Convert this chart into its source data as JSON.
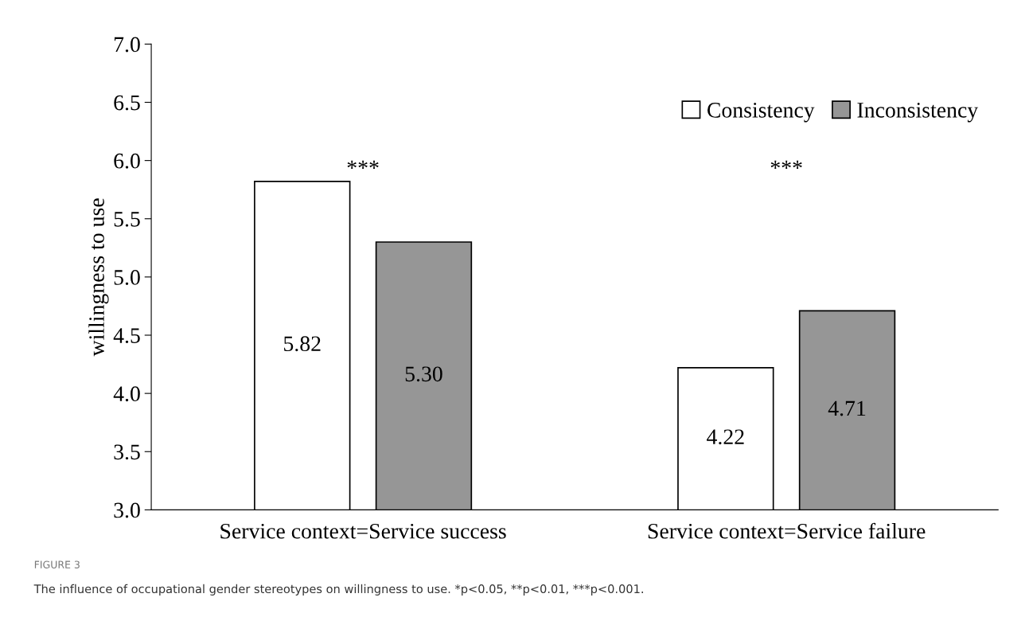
{
  "chart_data": {
    "type": "bar",
    "ylabel": "willingness to use",
    "categories": [
      "Service context=Service success",
      "Service context=Service failure"
    ],
    "series": [
      {
        "name": "Consistency",
        "color": "#ffffff",
        "values": [
          5.82,
          4.22
        ],
        "value_labels": [
          "5.82",
          "4.22"
        ]
      },
      {
        "name": "Inconsistency",
        "color": "#969696",
        "values": [
          5.3,
          4.71
        ],
        "value_labels": [
          "5.30",
          "4.71"
        ]
      }
    ],
    "ylim": [
      3,
      7
    ],
    "yticks": [
      {
        "value": 3,
        "label": "3.0"
      },
      {
        "value": 3.5,
        "label": "3.5"
      },
      {
        "value": 4,
        "label": "4.0"
      },
      {
        "value": 4.5,
        "label": "4.5"
      },
      {
        "value": 5,
        "label": "5.0"
      },
      {
        "value": 5.5,
        "label": "5.5"
      },
      {
        "value": 6,
        "label": "6.0"
      },
      {
        "value": 6.5,
        "label": "6.5"
      },
      {
        "value": 7,
        "label": "7.0"
      }
    ],
    "grid": false,
    "legend": "top right",
    "annotations": [
      "***",
      "***",
      "FIGURE 3",
      "The influence of occupational gender stereotypes on willingness to use. *p<0.05, **p<0.01, ***p<0.001."
    ]
  }
}
